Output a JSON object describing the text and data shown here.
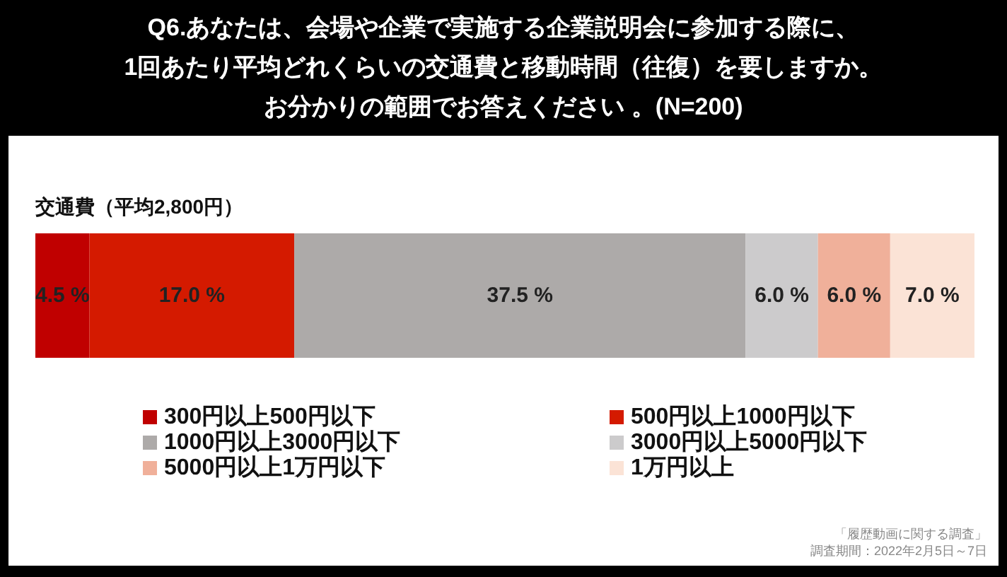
{
  "chart_data": {
    "type": "bar",
    "orientation": "horizontal",
    "stacked": true,
    "title": "Q6.あなたは、会場や企業で実施する企業説明会に参加する際に、1回あたり平均どれくらいの交通費と移動時間（往復）を要しますか。",
    "subtitle": "お分かりの範囲でお答えください 。(N=200)",
    "ylabel": "交通費（平均2,800円）",
    "categories": [
      null
    ],
    "series": [
      {
        "name": "300円以上500円以下",
        "color": "#c00000",
        "values": [
          4.5
        ],
        "value_labels": [
          "4.5 %"
        ]
      },
      {
        "name": "500円以上1000円以下",
        "color": "#d41a00",
        "values": [
          17.0
        ],
        "value_labels": [
          "17.0 %"
        ]
      },
      {
        "name": "1000円以上3000円以下",
        "color": "#adaaa9",
        "values": [
          37.5
        ],
        "value_labels": [
          "37.5 %"
        ]
      },
      {
        "name": "3000円以上5000円以下",
        "color": "#cccbcc",
        "values": [
          6.0
        ],
        "value_labels": [
          "6.0 %"
        ]
      },
      {
        "name": "5000円以上1万円以下",
        "color": "#f0b09a",
        "values": [
          6.0
        ],
        "value_labels": [
          "6.0 %"
        ]
      },
      {
        "name": "1万円以上",
        "color": "#fbe3d6",
        "values": [
          7.0
        ],
        "value_labels": [
          "7.0 %"
        ]
      }
    ],
    "legend": "bottom",
    "annotations": [
      "「履歴動画に関する調査」",
      "調査期間：2022年2月5日～7日"
    ]
  }
}
